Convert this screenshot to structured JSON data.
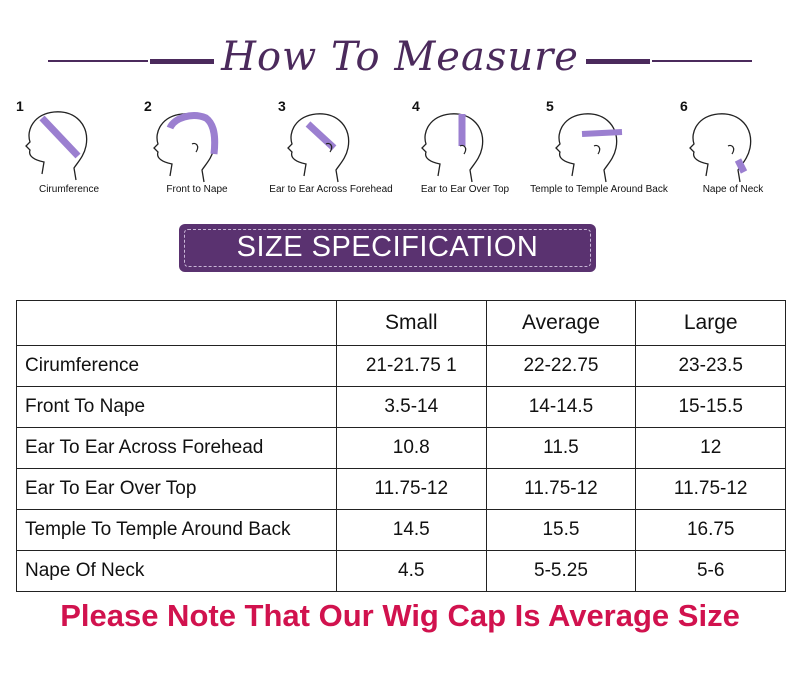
{
  "header": {
    "title": "How To Measure"
  },
  "figures": [
    {
      "num": "1",
      "caption": "Cirumference",
      "icon": "head-circumference-icon"
    },
    {
      "num": "2",
      "caption": "Front to Nape",
      "icon": "head-front-to-nape-icon"
    },
    {
      "num": "3",
      "caption": "Ear to Ear Across Forehead",
      "icon": "head-ear-to-ear-forehead-icon"
    },
    {
      "num": "4",
      "caption": "Ear to Ear Over Top",
      "icon": "head-ear-to-ear-top-icon"
    },
    {
      "num": "5",
      "caption": "Temple to Temple Around Back",
      "icon": "head-temple-to-temple-icon"
    },
    {
      "num": "6",
      "caption": "Nape of Neck",
      "icon": "head-nape-of-neck-icon"
    }
  ],
  "banner": {
    "text": "SIZE SPECIFICATION"
  },
  "table": {
    "headers": [
      "",
      "Small",
      "Average",
      "Large"
    ],
    "rows": [
      [
        "Cirumference",
        "21-21.75 1",
        "22-22.75",
        "23-23.5"
      ],
      [
        "Front To Nape",
        "3.5-14",
        "14-14.5",
        "15-15.5"
      ],
      [
        "Ear To Ear Across Forehead",
        "10.8",
        "11.5",
        "12"
      ],
      [
        "Ear To Ear Over Top",
        "11.75-12",
        "11.75-12",
        "11.75-12"
      ],
      [
        "Temple To Temple Around Back",
        "14.5",
        "15.5",
        "16.75"
      ],
      [
        "Nape Of Neck",
        "4.5",
        "5-5.25",
        "5-6"
      ]
    ]
  },
  "note": "Please Note That Our Wig Cap Is Average Size",
  "colors": {
    "accent_purple": "#5a3270",
    "title_purple": "#4b2a5c",
    "tape_purple": "#9b7fd0",
    "note_red": "#d1124e"
  }
}
